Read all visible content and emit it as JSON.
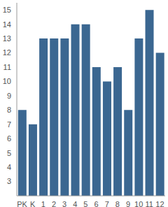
{
  "chart_data": {
    "type": "bar",
    "categories": [
      "PK",
      "K",
      "1",
      "2",
      "3",
      "4",
      "5",
      "6",
      "7",
      "8",
      "9",
      "10",
      "11",
      "12"
    ],
    "values": [
      8,
      7,
      13,
      13,
      13,
      14,
      14,
      11,
      10,
      11,
      8,
      13,
      15,
      12
    ],
    "color": "#3b6791",
    "ylim": [
      2,
      15.5
    ],
    "yticks": [
      3,
      4,
      5,
      6,
      7,
      8,
      9,
      10,
      11,
      12,
      13,
      14,
      15
    ],
    "grid": false
  }
}
